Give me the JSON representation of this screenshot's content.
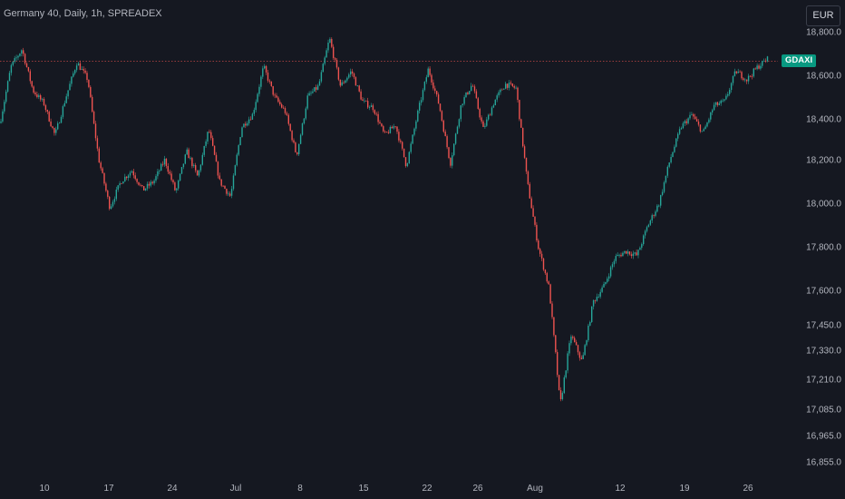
{
  "header": {
    "title": "Germany 40, Daily, 1h, SPREADEX",
    "currency_label": "EUR"
  },
  "badge": {
    "symbol": "GDAXI"
  },
  "colors": {
    "background": "#151821",
    "up": "#26a69a",
    "down": "#ef5350",
    "text": "#b2b5be",
    "badge": "#089981",
    "reference_line": "#ef5350"
  },
  "chart_data": {
    "type": "candlestick",
    "title": "Germany 40, Daily, 1h, SPREADEX",
    "currency": "EUR",
    "y_tick_labels": [
      "18,800.0",
      "18,600.0",
      "18,400.0",
      "18,200.0",
      "18,000.0",
      "17,800.0",
      "17,600.0",
      "17,450.0",
      "17,330.0",
      "17,210.0",
      "17,085.0",
      "16,965.0",
      "16,855.0"
    ],
    "x_tick_labels": [
      "10",
      "17",
      "24",
      "Jul",
      "8",
      "15",
      "22",
      "26",
      "Aug",
      "12",
      "19",
      "26"
    ],
    "reference_line": {
      "label": "GDAXI",
      "value": 18665,
      "style": "dotted"
    },
    "price_path": [
      {
        "date": "Jun 06",
        "price": 18380
      },
      {
        "date": "Jun 07",
        "price": 18640
      },
      {
        "date": "Jun 10",
        "price": 18720
      },
      {
        "date": "Jun 11",
        "price": 18530
      },
      {
        "date": "Jun 12",
        "price": 18470
      },
      {
        "date": "Jun 13",
        "price": 18320
      },
      {
        "date": "Jun 13",
        "price": 18500
      },
      {
        "date": "Jun 14",
        "price": 18660
      },
      {
        "date": "Jun 14",
        "price": 18580
      },
      {
        "date": "Jun 17",
        "price": 18200
      },
      {
        "date": "Jun 18",
        "price": 17980
      },
      {
        "date": "Jun 18",
        "price": 18100
      },
      {
        "date": "Jun 19",
        "price": 18150
      },
      {
        "date": "Jun 20",
        "price": 18060
      },
      {
        "date": "Jun 21",
        "price": 18100
      },
      {
        "date": "Jun 24",
        "price": 18200
      },
      {
        "date": "Jun 25",
        "price": 18050
      },
      {
        "date": "Jun 26",
        "price": 18240
      },
      {
        "date": "Jun 27",
        "price": 18120
      },
      {
        "date": "Jun 28",
        "price": 18350
      },
      {
        "date": "Jul 01",
        "price": 18100
      },
      {
        "date": "Jul 02",
        "price": 18030
      },
      {
        "date": "Jul 03",
        "price": 18360
      },
      {
        "date": "Jul 04",
        "price": 18420
      },
      {
        "date": "Jul 05",
        "price": 18640
      },
      {
        "date": "Jul 08",
        "price": 18500
      },
      {
        "date": "Jul 09",
        "price": 18430
      },
      {
        "date": "Jul 10",
        "price": 18220
      },
      {
        "date": "Jul 11",
        "price": 18500
      },
      {
        "date": "Jul 12",
        "price": 18550
      },
      {
        "date": "Jul 15",
        "price": 18770
      },
      {
        "date": "Jul 16",
        "price": 18550
      },
      {
        "date": "Jul 16",
        "price": 18620
      },
      {
        "date": "Jul 17",
        "price": 18480
      },
      {
        "date": "Jul 18",
        "price": 18450
      },
      {
        "date": "Jul 18",
        "price": 18320
      },
      {
        "date": "Jul 19",
        "price": 18370
      },
      {
        "date": "Jul 19",
        "price": 18170
      },
      {
        "date": "Jul 22",
        "price": 18420
      },
      {
        "date": "Jul 23",
        "price": 18630
      },
      {
        "date": "Jul 24",
        "price": 18460
      },
      {
        "date": "Jul 25",
        "price": 18180
      },
      {
        "date": "Jul 25",
        "price": 18470
      },
      {
        "date": "Jul 26",
        "price": 18560
      },
      {
        "date": "Jul 27",
        "price": 18350
      },
      {
        "date": "Jul 29",
        "price": 18480
      },
      {
        "date": "Jul 30",
        "price": 18560
      },
      {
        "date": "Jul 31",
        "price": 18540
      },
      {
        "date": "Aug 01",
        "price": 18100
      },
      {
        "date": "Aug 02",
        "price": 17800
      },
      {
        "date": "Aug 02",
        "price": 17610
      },
      {
        "date": "Aug 05",
        "price": 17100
      },
      {
        "date": "Aug 05",
        "price": 17400
      },
      {
        "date": "Aug 06",
        "price": 17280
      },
      {
        "date": "Aug 07",
        "price": 17550
      },
      {
        "date": "Aug 08",
        "price": 17620
      },
      {
        "date": "Aug 09",
        "price": 17750
      },
      {
        "date": "Aug 12",
        "price": 17780
      },
      {
        "date": "Aug 13",
        "price": 17760
      },
      {
        "date": "Aug 14",
        "price": 17900
      },
      {
        "date": "Aug 15",
        "price": 18000
      },
      {
        "date": "Aug 15",
        "price": 18200
      },
      {
        "date": "Aug 16",
        "price": 18360
      },
      {
        "date": "Aug 19",
        "price": 18420
      },
      {
        "date": "Aug 20",
        "price": 18330
      },
      {
        "date": "Aug 21",
        "price": 18460
      },
      {
        "date": "Aug 22",
        "price": 18480
      },
      {
        "date": "Aug 23",
        "price": 18620
      },
      {
        "date": "Aug 26",
        "price": 18580
      },
      {
        "date": "Aug 27",
        "price": 18640
      },
      {
        "date": "Aug 28",
        "price": 18680
      }
    ]
  }
}
